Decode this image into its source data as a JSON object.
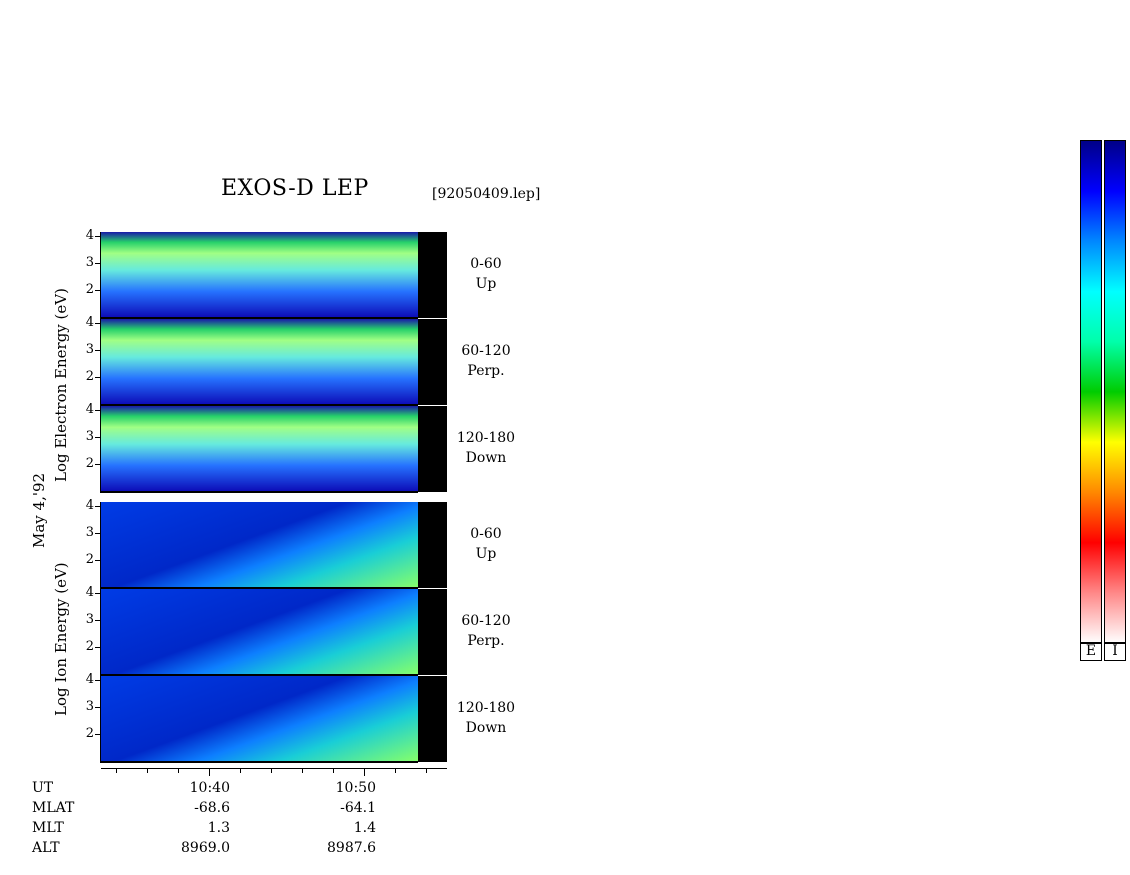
{
  "title": "EXOS-D LEP",
  "file_label": "[92050409.lep]",
  "date_label": "May 4,'92",
  "colors": {
    "background": "#ffffff",
    "no_data": "#000000",
    "scale": [
      "#ffffff",
      "#ff8888",
      "#ff0000",
      "#ff8800",
      "#ffff00",
      "#00cc00",
      "#00ffaa",
      "#00ffff",
      "#0088ff",
      "#0000ff",
      "#000088"
    ]
  },
  "chart_data": {
    "type": "heatmap",
    "panels": [
      {
        "species": "Electron",
        "pitch_angle": "0-60",
        "direction": "Up",
        "y_ticks": [
          "4",
          "3",
          "2"
        ]
      },
      {
        "species": "Electron",
        "pitch_angle": "60-120",
        "direction": "Perp.",
        "y_ticks": [
          "4",
          "3",
          "2"
        ]
      },
      {
        "species": "Electron",
        "pitch_angle": "120-180",
        "direction": "Down",
        "y_ticks": [
          "4",
          "3",
          "2"
        ]
      },
      {
        "species": "Ion",
        "pitch_angle": "0-60",
        "direction": "Up",
        "y_ticks": [
          "4",
          "3",
          "2"
        ]
      },
      {
        "species": "Ion",
        "pitch_angle": "60-120",
        "direction": "Perp.",
        "y_ticks": [
          "4",
          "3",
          "2"
        ]
      },
      {
        "species": "Ion",
        "pitch_angle": "120-180",
        "direction": "Down",
        "y_ticks": [
          "4",
          "3",
          "2"
        ]
      }
    ],
    "electron_ylabel": "Log Electron Energy (eV)",
    "ion_ylabel": "Log Ion Energy (eV)",
    "ylim": [
      1,
      4.2
    ],
    "x_ticks": [
      "10:40",
      "10:50"
    ],
    "ephemeris": {
      "rows": [
        {
          "label": "UT",
          "values": [
            "10:40",
            "10:50"
          ]
        },
        {
          "label": "MLAT",
          "values": [
            "-68.6",
            "-64.1"
          ]
        },
        {
          "label": "MLT",
          "values": [
            "1.3",
            "1.4"
          ]
        },
        {
          "label": "ALT",
          "values": [
            "8969.0",
            "8987.6"
          ]
        }
      ]
    },
    "colorbars": [
      {
        "label": "E"
      },
      {
        "label": "I"
      }
    ]
  }
}
